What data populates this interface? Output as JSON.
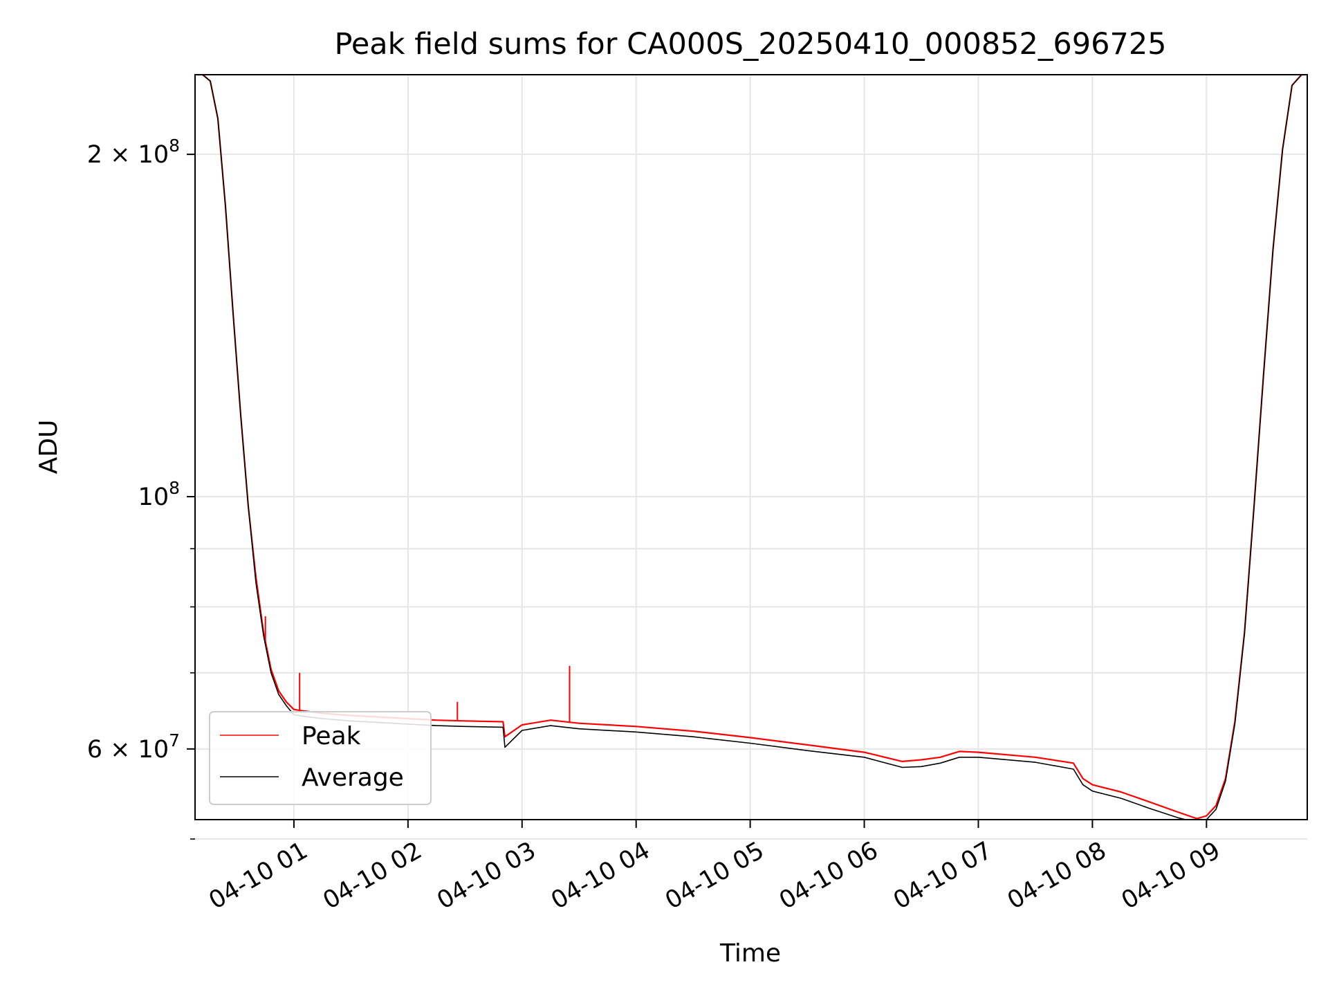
{
  "chart_data": {
    "type": "line",
    "title": "Peak field sums for CA000S_20250410_000852_696725",
    "xlabel": "Time",
    "ylabel": "ADU",
    "yscale": "log",
    "grid": true,
    "legend_placement": "lower-left",
    "xlim": [
      "2025-04-10 00:08",
      "2025-04-10 09:53"
    ],
    "ylim": [
      52000000,
      235000000
    ],
    "x_tick_labels": [
      "04-10 01",
      "04-10 02",
      "04-10 03",
      "04-10 04",
      "04-10 05",
      "04-10 06",
      "04-10 07",
      "04-10 08",
      "04-10 09"
    ],
    "x_tick_times": [
      "2025-04-10 01:00",
      "2025-04-10 02:00",
      "2025-04-10 03:00",
      "2025-04-10 04:00",
      "2025-04-10 05:00",
      "2025-04-10 06:00",
      "2025-04-10 07:00",
      "2025-04-10 08:00",
      "2025-04-10 09:00"
    ],
    "y_major_ticks": [
      {
        "value": 200000000,
        "mantissa": "2",
        "exp": "8"
      },
      {
        "value": 100000000,
        "mantissa": "",
        "exp": "8"
      },
      {
        "value": 60000000,
        "mantissa": "6",
        "exp": "7"
      }
    ],
    "y_minor_ticks": [
      90000000,
      80000000,
      70000000,
      50000000
    ],
    "series": [
      {
        "name": "Peak",
        "color": "#ff0000",
        "x": [
          "2025-04-10 00:08",
          "2025-04-10 00:12",
          "2025-04-10 00:16",
          "2025-04-10 00:20",
          "2025-04-10 00:24",
          "2025-04-10 00:28",
          "2025-04-10 00:32",
          "2025-04-10 00:36",
          "2025-04-10 00:40",
          "2025-04-10 00:44",
          "2025-04-10 00:48",
          "2025-04-10 00:52",
          "2025-04-10 00:56",
          "2025-04-10 01:00",
          "2025-04-10 01:05",
          "2025-04-10 01:15",
          "2025-04-10 01:30",
          "2025-04-10 01:45",
          "2025-04-10 02:00",
          "2025-04-10 02:15",
          "2025-04-10 02:30",
          "2025-04-10 02:50",
          "2025-04-10 02:51",
          "2025-04-10 03:00",
          "2025-04-10 03:15",
          "2025-04-10 03:30",
          "2025-04-10 04:00",
          "2025-04-10 04:30",
          "2025-04-10 05:00",
          "2025-04-10 05:30",
          "2025-04-10 06:00",
          "2025-04-10 06:20",
          "2025-04-10 06:30",
          "2025-04-10 06:40",
          "2025-04-10 06:50",
          "2025-04-10 07:00",
          "2025-04-10 07:30",
          "2025-04-10 07:50",
          "2025-04-10 07:55",
          "2025-04-10 08:00",
          "2025-04-10 08:15",
          "2025-04-10 08:30",
          "2025-04-10 08:45",
          "2025-04-10 08:55",
          "2025-04-10 09:00",
          "2025-04-10 09:05",
          "2025-04-10 09:10",
          "2025-04-10 09:15",
          "2025-04-10 09:20",
          "2025-04-10 09:25",
          "2025-04-10 09:30",
          "2025-04-10 09:35",
          "2025-04-10 09:40",
          "2025-04-10 09:45",
          "2025-04-10 09:50",
          "2025-04-10 09:53"
        ],
        "y": [
          235000000,
          235000000,
          232000000,
          215000000,
          180000000,
          145000000,
          118000000,
          98000000,
          85000000,
          76000000,
          70500000,
          67500000,
          66000000,
          65000000,
          64800000,
          64500000,
          64200000,
          64000000,
          63800000,
          63600000,
          63500000,
          63400000,
          61500000,
          63000000,
          63600000,
          63200000,
          62800000,
          62200000,
          61400000,
          60500000,
          59600000,
          58500000,
          58700000,
          59000000,
          59700000,
          59600000,
          59000000,
          58300000,
          56500000,
          55800000,
          55000000,
          53900000,
          52800000,
          52100000,
          52400000,
          53500000,
          56500000,
          63500000,
          76000000,
          98000000,
          128000000,
          165000000,
          202000000,
          230000000,
          235000000,
          235000000
        ],
        "spikes": [
          {
            "x": "2025-04-10 00:38",
            "y": 91000000
          },
          {
            "x": "2025-04-10 00:45",
            "y": 78500000
          },
          {
            "x": "2025-04-10 01:03",
            "y": 70000000
          },
          {
            "x": "2025-04-10 02:26",
            "y": 66000000
          },
          {
            "x": "2025-04-10 03:25",
            "y": 71000000
          }
        ]
      },
      {
        "name": "Average",
        "color": "#000000",
        "x": [
          "2025-04-10 00:08",
          "2025-04-10 00:12",
          "2025-04-10 00:16",
          "2025-04-10 00:20",
          "2025-04-10 00:24",
          "2025-04-10 00:28",
          "2025-04-10 00:32",
          "2025-04-10 00:36",
          "2025-04-10 00:40",
          "2025-04-10 00:44",
          "2025-04-10 00:48",
          "2025-04-10 00:52",
          "2025-04-10 00:56",
          "2025-04-10 01:00",
          "2025-04-10 01:05",
          "2025-04-10 01:15",
          "2025-04-10 01:30",
          "2025-04-10 01:45",
          "2025-04-10 02:00",
          "2025-04-10 02:15",
          "2025-04-10 02:30",
          "2025-04-10 02:50",
          "2025-04-10 02:51",
          "2025-04-10 03:00",
          "2025-04-10 03:15",
          "2025-04-10 03:30",
          "2025-04-10 04:00",
          "2025-04-10 04:30",
          "2025-04-10 05:00",
          "2025-04-10 05:30",
          "2025-04-10 06:00",
          "2025-04-10 06:20",
          "2025-04-10 06:30",
          "2025-04-10 06:40",
          "2025-04-10 06:50",
          "2025-04-10 07:00",
          "2025-04-10 07:30",
          "2025-04-10 07:50",
          "2025-04-10 07:55",
          "2025-04-10 08:00",
          "2025-04-10 08:15",
          "2025-04-10 08:30",
          "2025-04-10 08:45",
          "2025-04-10 08:55",
          "2025-04-10 09:00",
          "2025-04-10 09:05",
          "2025-04-10 09:10",
          "2025-04-10 09:15",
          "2025-04-10 09:20",
          "2025-04-10 09:25",
          "2025-04-10 09:30",
          "2025-04-10 09:35",
          "2025-04-10 09:40",
          "2025-04-10 09:45",
          "2025-04-10 09:50",
          "2025-04-10 09:53"
        ],
        "y": [
          235000000,
          235000000,
          232000000,
          215000000,
          180000000,
          145000000,
          118000000,
          98000000,
          84000000,
          75500000,
          70000000,
          67000000,
          65500000,
          64300000,
          64100000,
          63800000,
          63500000,
          63300000,
          63100000,
          62900000,
          62800000,
          62700000,
          60200000,
          62300000,
          62900000,
          62500000,
          62100000,
          61500000,
          60700000,
          59800000,
          59000000,
          57800000,
          57900000,
          58300000,
          59000000,
          59000000,
          58400000,
          57600000,
          55800000,
          55100000,
          54300000,
          53200000,
          52200000,
          51700000,
          52000000,
          53100000,
          56200000,
          63200000,
          75800000,
          97800000,
          128000000,
          165000000,
          202000000,
          230000000,
          235000000,
          235000000
        ]
      }
    ]
  }
}
